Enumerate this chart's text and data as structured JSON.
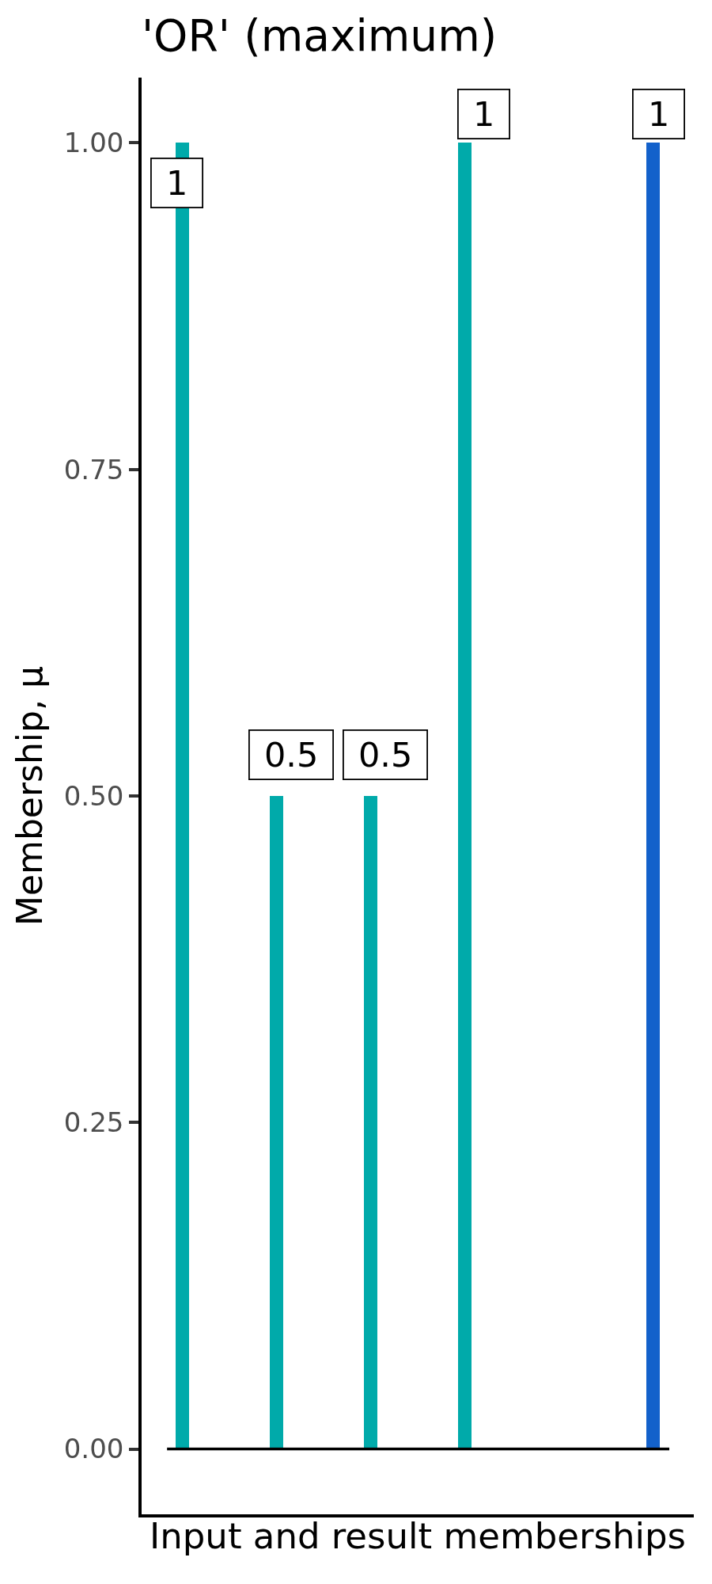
{
  "chart_data": {
    "type": "bar",
    "title": "'OR' (maximum)",
    "xlabel": "Input and result memberships",
    "ylabel": "Membership, μ",
    "categories": [
      null,
      null,
      null,
      null,
      null,
      null
    ],
    "values": [
      1,
      0.5,
      0.5,
      1,
      null,
      1
    ],
    "colors": [
      "#00aaaa",
      "#00aaaa",
      "#00aaaa",
      "#00aaaa",
      null,
      "#1361cb"
    ],
    "ylim": [
      -0.05,
      1.05
    ],
    "yticks": [
      {
        "value": 0,
        "label": "0.00"
      },
      {
        "value": 0.25,
        "label": "0.25"
      },
      {
        "value": 0.5,
        "label": "0.50"
      },
      {
        "value": 0.75,
        "label": "0.75"
      },
      {
        "value": 1,
        "label": "1.00"
      }
    ],
    "ref_lines": [
      {
        "axis": "y",
        "value": 0,
        "color": "#000000"
      }
    ],
    "data_labels": true,
    "tick_labels": "y"
  }
}
